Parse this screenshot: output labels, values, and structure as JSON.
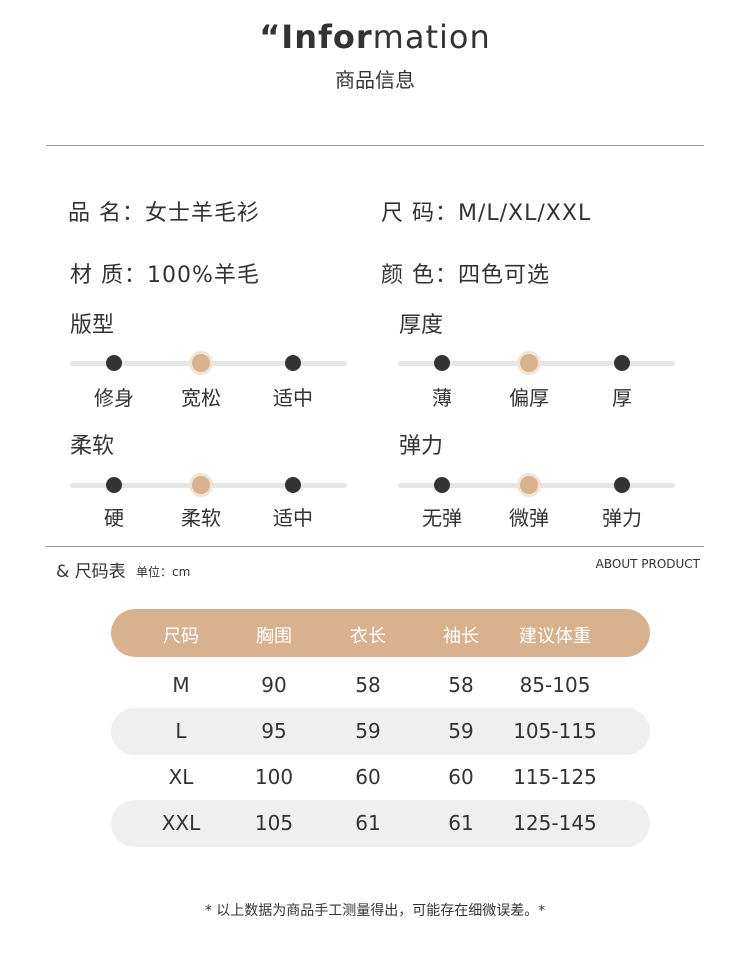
{
  "header": {
    "title_bold": "“Infor",
    "title_light": "mation",
    "subtitle": "商品信息"
  },
  "info": {
    "name": "品  名：女士羊毛衫",
    "size": "尺  码：M/L/XL/XXL",
    "material": "材  质：100%羊毛",
    "color": "颜  色：四色可选"
  },
  "attributes": [
    {
      "title": "版型",
      "options": [
        "修身",
        "宽松",
        "适中"
      ],
      "selected_index": 1
    },
    {
      "title": "厚度",
      "options": [
        "薄",
        "偏厚",
        "厚"
      ],
      "selected_index": 1
    },
    {
      "title": "柔软",
      "options": [
        "硬",
        "柔软",
        "适中"
      ],
      "selected_index": 1
    },
    {
      "title": "弹力",
      "options": [
        "无弹",
        "微弹",
        "弹力"
      ],
      "selected_index": 1
    }
  ],
  "size_chart": {
    "title": "& 尺码表",
    "unit": "单位：cm",
    "title_en": "ABOUT PRODUCT",
    "headers": [
      "尺码",
      "胸围",
      "衣长",
      "袖长",
      "建议体重"
    ],
    "rows": [
      [
        "M",
        "90",
        "58",
        "58",
        "85-105"
      ],
      [
        "L",
        "95",
        "59",
        "59",
        "105-115"
      ],
      [
        "XL",
        "100",
        "60",
        "60",
        "115-125"
      ],
      [
        "XXL",
        "105",
        "61",
        "61",
        "125-145"
      ]
    ]
  },
  "footnote": "* 以上数据为商品手工测量得出，可能存在细微误差。*",
  "colors": {
    "accent": "#d8b28f",
    "dot": "#333333",
    "row_bg": "#efefef"
  }
}
